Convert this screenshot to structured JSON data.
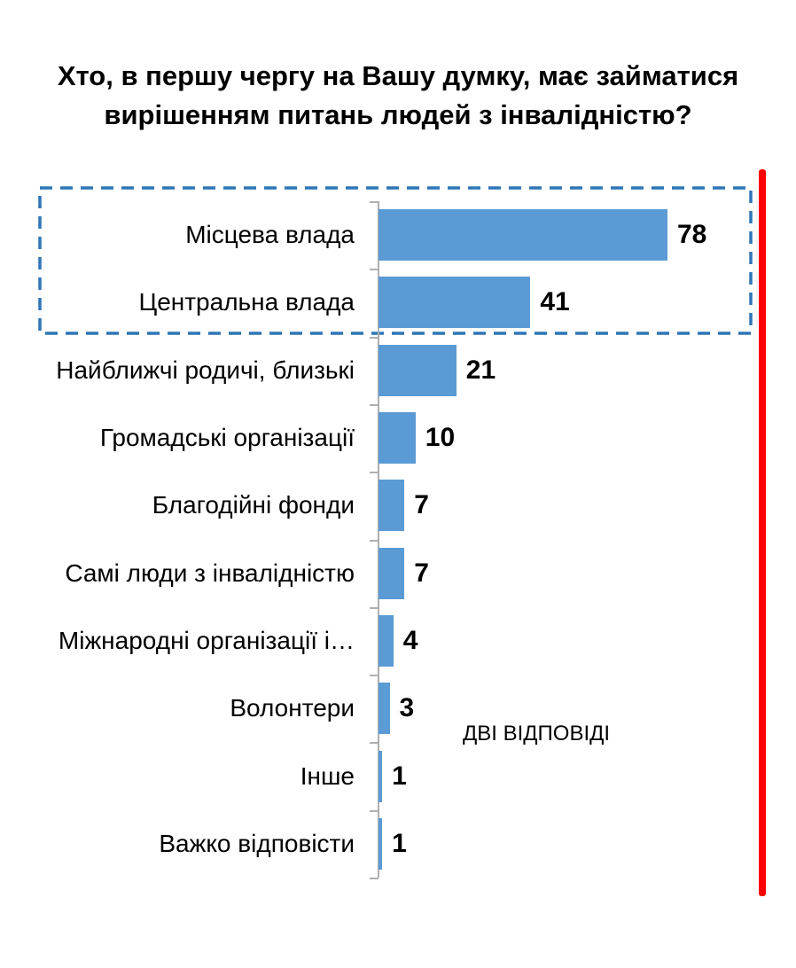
{
  "title_lines": [
    "Хто, в першу чергу на Вашу думку, має займатися",
    "вирішенням питань людей з інвалідністю?"
  ],
  "chart_data": {
    "type": "bar",
    "orientation": "horizontal",
    "title": "Хто, в першу чергу на Вашу думку, має займатися вирішенням питань людей з інвалідністю?",
    "categories": [
      "Місцева влада",
      "Центральна влада",
      "Найближчі родичі, близькі",
      "Громадські організації",
      "Благодійні фонди",
      "Самі люди з інвалідністю",
      "Міжнародні організації і…",
      "Волонтери",
      "Інше",
      "Важко відповісти"
    ],
    "values": [
      78,
      41,
      21,
      10,
      7,
      7,
      4,
      3,
      1,
      1
    ],
    "annotation": "ДВІ ВІДПОВІДІ",
    "highlighted_categories": [
      "Місцева влада",
      "Центральна влада"
    ],
    "xlabel": "",
    "ylabel": "",
    "grid": false,
    "legend": "none",
    "colors": {
      "bar": "#5B9BD5",
      "highlight_border": "#2E75B6",
      "marker_line": "#FF0000",
      "axis": "#AFAFAF",
      "text": "#000000"
    }
  }
}
